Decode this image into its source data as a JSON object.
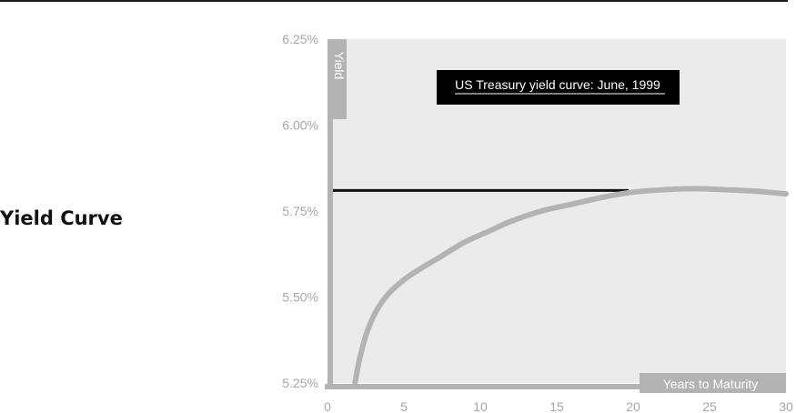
{
  "page": {
    "section_title": "Yield Curve"
  },
  "chart_data": {
    "type": "line",
    "title": "US Treasury yield curve: June, 1999",
    "xlabel": "Years to Maturity",
    "ylabel": "Yield",
    "xlim": [
      0,
      30
    ],
    "ylim": [
      5.25,
      6.25
    ],
    "xticks": [
      0,
      5,
      10,
      15,
      20,
      25,
      30
    ],
    "xtick_labels": [
      "0",
      "5",
      "10",
      "15",
      "20",
      "25",
      "30"
    ],
    "yticks": [
      5.25,
      5.5,
      5.75,
      6.0,
      6.25
    ],
    "ytick_labels": [
      "5.25%",
      "5.50%",
      "5.75%",
      "6.00%",
      "6.25%"
    ],
    "grid": false,
    "series": [
      {
        "color": "#b3b3b3",
        "x": [
          1.8,
          2.1,
          2.6,
          3.2,
          4.0,
          5.0,
          6.0,
          7.5,
          9.0,
          10.5,
          12.0,
          14.0,
          16.0,
          18.0,
          20.0,
          22.0,
          24.0,
          26.0,
          28.0,
          30.0
        ],
        "y": [
          5.25,
          5.32,
          5.4,
          5.46,
          5.51,
          5.55,
          5.58,
          5.62,
          5.66,
          5.69,
          5.72,
          5.75,
          5.77,
          5.79,
          5.805,
          5.812,
          5.815,
          5.812,
          5.808,
          5.8
        ]
      }
    ],
    "reference_line": {
      "y": 5.81,
      "x_from": 0,
      "x_to": 19.7,
      "color": "#111111"
    },
    "colors": {
      "plot_background": "#ebebeb",
      "axis": "#b3b3b3",
      "tick_label": "#a6a6a6",
      "title_box": "#000000"
    }
  }
}
